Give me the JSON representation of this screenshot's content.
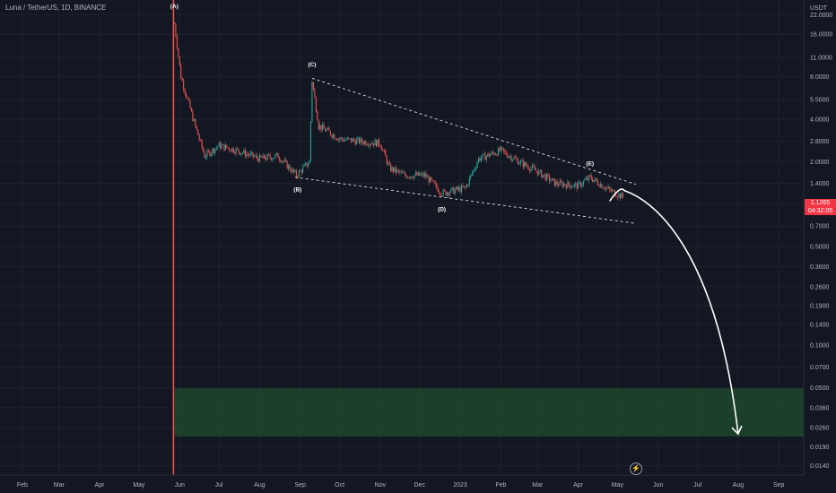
{
  "symbol_title": "Luna / TetherUS, 1D, BINANCE",
  "colors": {
    "background": "#131722",
    "grid": "#1e222d",
    "axis_text": "#b2b5be",
    "up_candle": "#26a69a",
    "down_candle": "#ef5350",
    "last_price": "#f23645",
    "target_zone": "#1f4d2e",
    "annotation": "#ffffff"
  },
  "icons": {
    "alert": "lightning-icon"
  },
  "alert_glyph": "⚡",
  "last_price": {
    "value": "1.1265",
    "countdown": "04:32:05"
  },
  "chart_data": {
    "type": "candlestick",
    "title": "Luna / TetherUS, 1D, BINANCE",
    "y_scale": "log",
    "y_unit": "USDT",
    "y_ticks": [
      "22.0000",
      "16.0000",
      "11.0000",
      "8.0000",
      "5.5000",
      "4.0000",
      "2.8000",
      "2.0000",
      "1.4000",
      "1.0000",
      "0.7000",
      "0.5000",
      "0.3600",
      "0.2600",
      "0.1900",
      "0.1400",
      "0.1000",
      "0.0700",
      "0.0500",
      "0.0360",
      "0.0260",
      "0.0190",
      "0.0140"
    ],
    "y_tick_values": [
      22,
      16,
      11,
      8,
      5.5,
      4,
      2.8,
      2,
      1.4,
      1,
      0.7,
      0.5,
      0.36,
      0.26,
      0.19,
      0.14,
      0.1,
      0.07,
      0.05,
      0.036,
      0.026,
      0.019,
      0.014
    ],
    "x_ticks": [
      "Feb",
      "Mar",
      "Apr",
      "May",
      "Jun",
      "Jul",
      "Aug",
      "Sep",
      "Oct",
      "Nov",
      "Dec",
      "2023",
      "Feb",
      "Mar",
      "Apr",
      "May",
      "Jun",
      "Jul",
      "Aug",
      "Sep"
    ],
    "x_tick_dates": [
      "2022-02-01",
      "2022-03-01",
      "2022-04-01",
      "2022-05-01",
      "2022-06-01",
      "2022-07-01",
      "2022-08-01",
      "2022-09-01",
      "2022-10-01",
      "2022-11-01",
      "2022-12-01",
      "2023-01-01",
      "2023-02-01",
      "2023-03-01",
      "2023-04-01",
      "2023-05-01",
      "2023-06-01",
      "2023-07-01",
      "2023-08-01",
      "2023-09-01"
    ],
    "x_range": [
      "2022-01-15",
      "2023-09-20"
    ],
    "y_range": [
      0.012,
      28
    ],
    "grid": true,
    "price_path": [
      [
        "2022-05-28",
        19.0
      ],
      [
        "2022-06-02",
        8.0
      ],
      [
        "2022-06-12",
        3.8
      ],
      [
        "2022-06-20",
        2.2
      ],
      [
        "2022-07-01",
        2.6
      ],
      [
        "2022-07-15",
        2.4
      ],
      [
        "2022-08-01",
        2.1
      ],
      [
        "2022-08-15",
        2.2
      ],
      [
        "2022-08-29",
        1.6
      ],
      [
        "2022-09-08",
        2.0
      ],
      [
        "2022-09-10",
        7.5
      ],
      [
        "2022-09-15",
        3.6
      ],
      [
        "2022-10-01",
        2.9
      ],
      [
        "2022-10-15",
        2.8
      ],
      [
        "2022-11-01",
        2.7
      ],
      [
        "2022-11-08",
        1.8
      ],
      [
        "2022-11-20",
        1.6
      ],
      [
        "2022-12-05",
        1.6
      ],
      [
        "2022-12-18",
        1.2
      ],
      [
        "2023-01-05",
        1.3
      ],
      [
        "2023-01-15",
        2.1
      ],
      [
        "2023-02-01",
        2.4
      ],
      [
        "2023-02-15",
        2.0
      ],
      [
        "2023-03-01",
        1.7
      ],
      [
        "2023-03-15",
        1.4
      ],
      [
        "2023-04-01",
        1.35
      ],
      [
        "2023-04-10",
        1.55
      ],
      [
        "2023-04-25",
        1.25
      ],
      [
        "2023-05-05",
        1.1265
      ]
    ],
    "wave_labels": [
      {
        "label": "(A)",
        "date": "2022-05-28",
        "price": 24.5
      },
      {
        "label": "(C)",
        "date": "2022-09-10",
        "price": 9.5
      },
      {
        "label": "(B)",
        "date": "2022-08-30",
        "price": 1.23
      },
      {
        "label": "(D)",
        "date": "2022-12-18",
        "price": 0.89
      },
      {
        "label": "(E)",
        "date": "2023-04-10",
        "price": 1.88
      }
    ],
    "trendlines": [
      {
        "name": "upper",
        "from": [
          "2022-09-10",
          7.8
        ],
        "to": [
          "2023-05-15",
          1.38
        ]
      },
      {
        "name": "lower",
        "from": [
          "2022-08-28",
          1.55
        ],
        "to": [
          "2023-05-15",
          0.73
        ]
      }
    ],
    "target_zone": {
      "from_price": 0.0225,
      "to_price": 0.0495,
      "from_date": "2022-05-28",
      "to_date": "2023-09-20"
    },
    "projection": {
      "from": [
        "2023-04-25",
        1.05
      ],
      "peak": [
        "2023-05-06",
        1.25
      ],
      "to": [
        "2023-08-01",
        0.0235
      ]
    }
  }
}
